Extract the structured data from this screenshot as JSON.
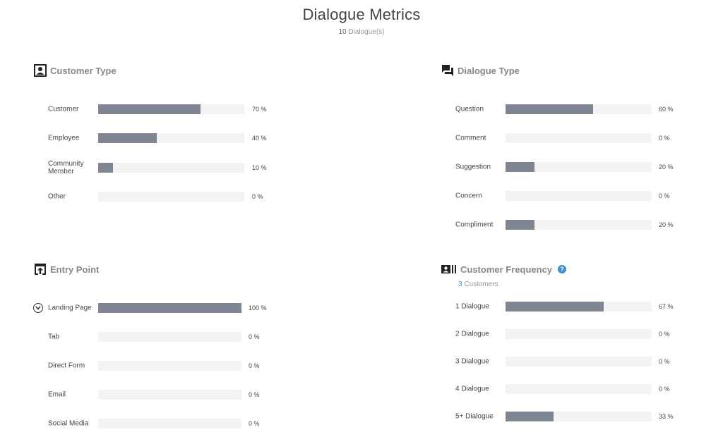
{
  "header": {
    "title": "Dialogue Metrics",
    "count": "10",
    "count_suffix": " Dialogue(s)"
  },
  "colors": {
    "bar_fill": "#808593",
    "bar_track": "#f3f3f3",
    "accent": "#3d8fd1"
  },
  "sections": {
    "customer_type": {
      "title": "Customer Type",
      "icon": "person-card-icon",
      "rows": [
        {
          "label": "Customer",
          "value": 70,
          "pct": "70 %"
        },
        {
          "label": "Employee",
          "value": 40,
          "pct": "40 %"
        },
        {
          "label": "Community Member",
          "value": 10,
          "pct": "10 %"
        },
        {
          "label": "Other",
          "value": 0,
          "pct": "0 %"
        }
      ]
    },
    "dialogue_type": {
      "title": "Dialogue Type",
      "icon": "chat-bubbles-icon",
      "rows": [
        {
          "label": "Question",
          "value": 60,
          "pct": "60 %"
        },
        {
          "label": "Comment",
          "value": 0,
          "pct": "0 %"
        },
        {
          "label": "Suggestion",
          "value": 20,
          "pct": "20 %"
        },
        {
          "label": "Concern",
          "value": 0,
          "pct": "0 %"
        },
        {
          "label": "Compliment",
          "value": 20,
          "pct": "20 %"
        }
      ]
    },
    "entry_point": {
      "title": "Entry Point",
      "icon": "upload-box-icon",
      "rows": [
        {
          "label": "Landing Page",
          "value": 100,
          "pct": "100 %"
        },
        {
          "label": "Tab",
          "value": 0,
          "pct": "0 %"
        },
        {
          "label": "Direct Form",
          "value": 0,
          "pct": "0 %"
        },
        {
          "label": "Email",
          "value": 0,
          "pct": "0 %"
        },
        {
          "label": "Social Media",
          "value": 0,
          "pct": "0 %"
        }
      ]
    },
    "customer_frequency": {
      "title": "Customer Frequency",
      "icon": "contact-list-icon",
      "help_icon": "help-icon",
      "note_count": "3",
      "note_suffix": " Customers",
      "rows": [
        {
          "label": "1 Dialogue",
          "value": 67,
          "pct": "67 %"
        },
        {
          "label": "2 Dialogue",
          "value": 0,
          "pct": "0 %"
        },
        {
          "label": "3 Dialogue",
          "value": 0,
          "pct": "0 %"
        },
        {
          "label": "4 Dialogue",
          "value": 0,
          "pct": "0 %"
        },
        {
          "label": "5+ Dialogue",
          "value": 33,
          "pct": "33 %"
        }
      ]
    }
  }
}
